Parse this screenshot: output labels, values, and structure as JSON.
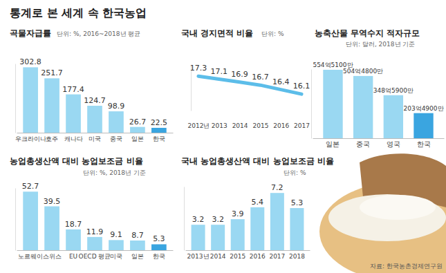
{
  "title": "통계로 본 세계 속 한국농업",
  "source": "자료: 한국농촌경제연구원",
  "chart_data": [
    {
      "type": "bar",
      "title": "곡물자급률",
      "subtitle": "단위: %, 2016~2018년 평균",
      "categories": [
        "우크라이나",
        "호주",
        "캐나다",
        "미국",
        "중국",
        "일본",
        "한국"
      ],
      "values": [
        302.8,
        251.7,
        177.4,
        124.7,
        98.9,
        26.7,
        22.5
      ],
      "colors": [
        "#9ad8f2",
        "#9ad8f2",
        "#9ad8f2",
        "#9ad8f2",
        "#9ad8f2",
        "#9ad8f2",
        "#3aa5e0"
      ],
      "ylim": [
        0,
        320
      ],
      "yticks": [],
      "tick_labels": "x",
      "data_labels": true
    },
    {
      "type": "line",
      "title": "국내 경지면적 비율",
      "subtitle": "단위: %",
      "categories": [
        "2012년",
        "2013",
        "2014",
        "2015",
        "2016",
        "2017"
      ],
      "values": [
        17.3,
        17.1,
        16.9,
        16.7,
        16.4,
        16.1
      ],
      "color": "#5cbde9",
      "ylim": [
        15,
        18
      ],
      "yticks": [],
      "tick_labels": "x",
      "data_labels": true
    },
    {
      "type": "bar",
      "title": "농축산물 무역수지 적자규모",
      "subtitle": "단위: 달러, 2018년 기준",
      "categories": [
        "일본",
        "중국",
        "영국",
        "한국"
      ],
      "values": [
        55451000000,
        50448000000,
        34859000000,
        20349000000
      ],
      "value_labels": [
        "554억5100만",
        "504억4800만",
        "348억5900만",
        "203억4900만"
      ],
      "colors": [
        "#9ad8f2",
        "#9ad8f2",
        "#9ad8f2",
        "#3aa5e0"
      ],
      "ylim": [
        0,
        56000000000
      ],
      "yticks": [],
      "tick_labels": "x",
      "data_labels": true
    },
    {
      "type": "bar",
      "title": "농업총생산액 대비 농업보조금 비율",
      "subtitle": "단위: %, 2018년 기준",
      "categories": [
        "노르웨이",
        "스위스",
        "EU",
        "OECD 평균",
        "미국",
        "일본",
        "한국"
      ],
      "values": [
        52.7,
        39.5,
        18.7,
        11.9,
        9.1,
        8.7,
        5.3
      ],
      "colors": [
        "#9ad8f2",
        "#9ad8f2",
        "#9ad8f2",
        "#9ad8f2",
        "#9ad8f2",
        "#9ad8f2",
        "#3aa5e0"
      ],
      "ylim": [
        0,
        56
      ],
      "yticks": [],
      "tick_labels": "x",
      "data_labels": true
    },
    {
      "type": "bar",
      "title": "국내 농업총생산액 대비 농업보조금 비율",
      "subtitle": "단위: %",
      "categories": [
        "2013년",
        "2014",
        "2015",
        "2016",
        "2017",
        "2018"
      ],
      "values": [
        3.2,
        3.2,
        3.9,
        5.4,
        7.2,
        5.3
      ],
      "color": "#9ad8f2",
      "ylim": [
        0,
        8
      ],
      "yticks": [],
      "tick_labels": "x",
      "data_labels": true
    }
  ]
}
